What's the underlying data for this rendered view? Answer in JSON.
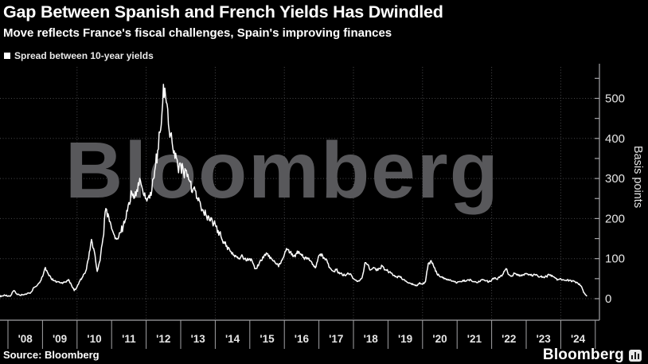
{
  "header": {
    "title": "Gap Between Spanish and French Yields Has Dwindled",
    "subtitle": "Move reflects France's fiscal challenges, Spain's improving finances"
  },
  "legend": {
    "label": "Spread between 10-year yields"
  },
  "watermark": "Bloomberg",
  "footer": {
    "source": "Source: Bloomberg",
    "brand": "Bloomberg"
  },
  "colors": {
    "background": "#000000",
    "line": "#ffffff",
    "grid": "#47474a",
    "axis": "#a3a3a6",
    "tick_label": "#e6e6e6",
    "watermark": "#58585b"
  },
  "chart_data": {
    "type": "line",
    "title": "Gap Between Spanish and French Yields Has Dwindled",
    "subtitle": "Move reflects France's fiscal challenges, Spain's improving finances",
    "legend_entries": [
      "Spread between 10-year yields"
    ],
    "legend_position": "top-left",
    "ylabel": "Basis points",
    "grid": true,
    "y_axis": {
      "ticks": [
        0,
        100,
        200,
        300,
        400,
        500
      ],
      "minor_step": 50,
      "max_minor_tick": 550,
      "ylim": [
        0,
        585
      ],
      "side": "right"
    },
    "x_axis": {
      "tick_labels": [
        "'08",
        "'09",
        "'10",
        "'11",
        "'12",
        "'13",
        "'14",
        "'15",
        "'16",
        "'17",
        "'18",
        "'19",
        "'20",
        "'21",
        "'22",
        "'23",
        "'24"
      ],
      "start_year": 2008,
      "end_year": 2025,
      "gridline_years": [
        2010,
        2012,
        2014,
        2016,
        2018,
        2020,
        2022,
        2024
      ]
    },
    "series": [
      {
        "name": "Spread between 10-year yields",
        "unit": "basis points",
        "start": "2007-10",
        "interval": "monthly",
        "values": [
          6,
          7,
          8,
          6,
          8,
          20,
          12,
          9,
          10,
          12,
          14,
          16,
          28,
          32,
          40,
          55,
          78,
          62,
          50,
          45,
          42,
          40,
          38,
          42,
          48,
          35,
          20,
          30,
          45,
          55,
          68,
          100,
          148,
          118,
          68,
          95,
          150,
          225,
          205,
          175,
          158,
          150,
          165,
          180,
          200,
          240,
          265,
          252,
          268,
          295,
          262,
          250,
          258,
          272,
          320,
          370,
          420,
          535,
          490,
          420,
          390,
          350,
          330,
          335,
          315,
          320,
          295,
          265,
          270,
          245,
          230,
          215,
          205,
          195,
          192,
          185,
          170,
          155,
          142,
          132,
          122,
          115,
          108,
          100,
          106,
          98,
          95,
          100,
          90,
          75,
          82,
          95,
          108,
          112,
          100,
          95,
          88,
          80,
          95,
          110,
          122,
          115,
          105,
          112,
          118,
          108,
          98,
          102,
          95,
          85,
          80,
          108,
          112,
          100,
          90,
          75,
          68,
          72,
          66,
          62,
          58,
          64,
          62,
          50,
          46,
          44,
          52,
          90,
          85,
          72,
          78,
          70,
          76,
          82,
          72,
          68,
          64,
          58,
          54,
          56,
          48,
          44,
          40,
          38,
          35,
          32,
          40,
          36,
          42,
          88,
          95,
          78,
          62,
          55,
          52,
          50,
          48,
          44,
          42,
          40,
          43,
          46,
          44,
          47,
          45,
          42,
          40,
          43,
          47,
          45,
          42,
          46,
          52,
          48,
          56,
          62,
          75,
          60,
          57,
          63,
          61,
          57,
          60,
          63,
          60,
          57,
          60,
          57,
          55,
          54,
          56,
          60,
          58,
          52,
          48,
          50,
          47,
          45,
          46,
          44,
          42,
          38,
          32,
          15,
          7
        ]
      }
    ]
  }
}
